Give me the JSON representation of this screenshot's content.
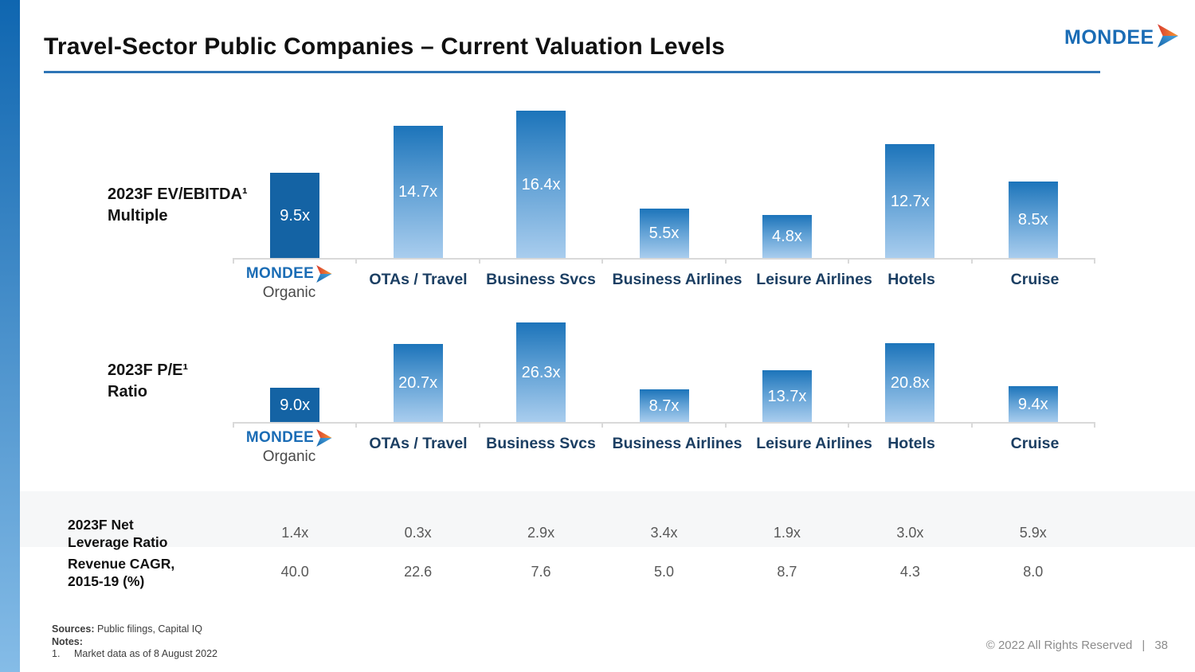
{
  "slide": {
    "title": "Travel-Sector Public Companies – Current Valuation Levels",
    "logo_text": "MONDEE",
    "copyright": "© 2022 All Rights Reserved",
    "copyright_separator": "|",
    "page_number": "38"
  },
  "colors": {
    "accent_blue": "#1a6cb5",
    "bar_solid": "#1463a4",
    "bar_gradient_top": "#1c74ba",
    "bar_gradient_bottom": "#a9cdee",
    "category_label": "#1c3f63",
    "title_underline": "#2e75b6",
    "logo_orange": "#f0692f",
    "table_value_gray": "#595959"
  },
  "chart_data": [
    {
      "type": "bar",
      "title": "2023F EV/EBITDA¹ Multiple",
      "label_lines": [
        "2023F EV/EBITDA¹",
        "Multiple"
      ],
      "categories": [
        "Mondee Organic",
        "OTAs / Travel",
        "Business Svcs",
        "Business Airlines",
        "Leisure Airlines",
        "Hotels",
        "Cruise"
      ],
      "values": [
        9.5,
        14.7,
        16.4,
        5.5,
        4.8,
        12.7,
        8.5
      ],
      "value_labels": [
        "9.5x",
        "14.7x",
        "16.4x",
        "5.5x",
        "4.8x",
        "12.7x",
        "8.5x"
      ],
      "first_category": {
        "logo_text": "MONDEE",
        "label": "Organic"
      },
      "ylim": [
        0,
        17
      ],
      "grid": false,
      "legend": false,
      "highlight_category": "Mondee Organic"
    },
    {
      "type": "bar",
      "title": "2023F P/E¹ Ratio",
      "label_lines": [
        "2023F P/E¹",
        "Ratio"
      ],
      "categories": [
        "Mondee Organic",
        "OTAs / Travel",
        "Business Svcs",
        "Business Airlines",
        "Leisure Airlines",
        "Hotels",
        "Cruise"
      ],
      "values": [
        9.0,
        20.7,
        26.3,
        8.7,
        13.7,
        20.8,
        9.4
      ],
      "value_labels": [
        "9.0x",
        "20.7x",
        "26.3x",
        "8.7x",
        "13.7x",
        "20.8x",
        "9.4x"
      ],
      "first_category": {
        "logo_text": "MONDEE",
        "label": "Organic"
      },
      "ylim": [
        0,
        27
      ],
      "grid": false,
      "legend": false,
      "highlight_category": "Mondee Organic"
    }
  ],
  "table": {
    "rows": [
      {
        "label_lines": [
          "2023F Net",
          "Leverage Ratio"
        ],
        "values": [
          "1.4x",
          "0.3x",
          "2.9x",
          "3.4x",
          "1.9x",
          "3.0x",
          "5.9x"
        ]
      },
      {
        "label_lines": [
          "Revenue CAGR,",
          "2015-19 (%)"
        ],
        "values": [
          "40.0",
          "22.6",
          "7.6",
          "5.0",
          "8.7",
          "4.3",
          "8.0"
        ]
      }
    ]
  },
  "footer": {
    "sources_label": "Sources:",
    "sources_text": "Public filings, Capital IQ",
    "notes_label": "Notes:",
    "note1_number": "1.",
    "note1_text": "Market data as of 8 August 2022"
  }
}
